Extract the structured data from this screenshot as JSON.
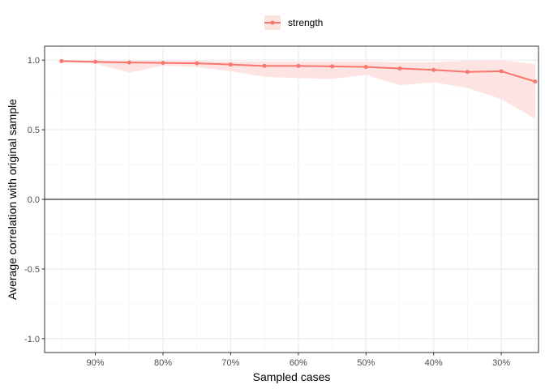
{
  "chart_data": {
    "type": "line",
    "xlabel": "Sampled cases",
    "ylabel": "Average correlation with original sample",
    "x_reversed": true,
    "xlim": [
      0.245,
      0.975
    ],
    "ylim": [
      -1.1,
      1.1
    ],
    "x_ticks": [
      0.9,
      0.8,
      0.7,
      0.6,
      0.5,
      0.4,
      0.3
    ],
    "x_tick_labels": [
      "90%",
      "80%",
      "70%",
      "60%",
      "50%",
      "40%",
      "30%"
    ],
    "y_ticks": [
      1.0,
      0.5,
      0.0,
      -0.5,
      -1.0
    ],
    "y_tick_labels": [
      "1.0",
      "0.5",
      "0.0",
      "-0.5",
      "-1.0"
    ],
    "hline": 0,
    "grid": true,
    "legend_position": "top",
    "series": [
      {
        "name": "strength",
        "color": "#f8766d",
        "band_color": "#fde4e2",
        "x": [
          0.95,
          0.9,
          0.85,
          0.8,
          0.75,
          0.7,
          0.65,
          0.6,
          0.55,
          0.5,
          0.45,
          0.4,
          0.35,
          0.3,
          0.25
        ],
        "y": [
          0.993,
          0.988,
          0.983,
          0.98,
          0.977,
          0.968,
          0.958,
          0.958,
          0.955,
          0.951,
          0.94,
          0.93,
          0.915,
          0.92,
          0.846
        ],
        "lower": [
          0.985,
          0.975,
          0.91,
          0.96,
          0.95,
          0.92,
          0.88,
          0.87,
          0.865,
          0.895,
          0.82,
          0.84,
          0.8,
          0.72,
          0.58
        ],
        "upper": [
          0.998,
          0.995,
          0.995,
          0.995,
          0.995,
          0.99,
          0.99,
          0.99,
          0.99,
          0.99,
          0.985,
          0.985,
          0.995,
          1.0,
          0.97
        ]
      }
    ]
  }
}
